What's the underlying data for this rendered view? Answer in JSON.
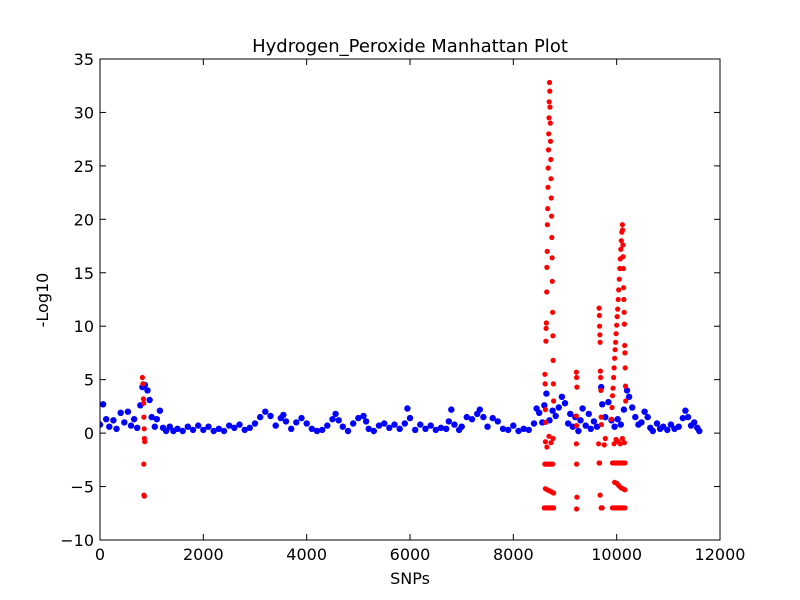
{
  "chart_data": {
    "type": "scatter",
    "title": "Hydrogen_Peroxide Manhattan Plot",
    "xlabel": "SNPs",
    "ylabel": "-Log10",
    "xlim": [
      0,
      12000
    ],
    "ylim": [
      -10,
      35
    ],
    "xticks": [
      0,
      2000,
      4000,
      6000,
      8000,
      10000,
      12000
    ],
    "yticks": [
      -10,
      -5,
      0,
      5,
      10,
      15,
      20,
      25,
      30,
      35
    ],
    "xtick_labels": [
      "0",
      "2000",
      "4000",
      "6000",
      "8000",
      "10000",
      "12000"
    ],
    "ytick_labels": [
      "−10",
      "−5",
      "0",
      "5",
      "10",
      "15",
      "20",
      "25",
      "30",
      "35"
    ],
    "grid": false,
    "series": [
      {
        "color": "#0000ff",
        "points": [
          [
            0,
            0.8
          ],
          [
            60,
            2.7
          ],
          [
            120,
            1.3
          ],
          [
            180,
            0.6
          ],
          [
            260,
            1.2
          ],
          [
            320,
            0.4
          ],
          [
            400,
            1.9
          ],
          [
            470,
            1.0
          ],
          [
            540,
            2.0
          ],
          [
            600,
            0.7
          ],
          [
            660,
            1.3
          ],
          [
            720,
            0.5
          ],
          [
            780,
            2.6
          ],
          [
            820,
            4.3
          ],
          [
            870,
            4.5
          ],
          [
            920,
            4.0
          ],
          [
            960,
            3.1
          ],
          [
            1000,
            1.5
          ],
          [
            1060,
            0.6
          ],
          [
            1100,
            1.3
          ],
          [
            1160,
            2.1
          ],
          [
            1220,
            0.5
          ],
          [
            1280,
            0.2
          ],
          [
            1350,
            0.6
          ],
          [
            1420,
            0.2
          ],
          [
            1500,
            0.4
          ],
          [
            1600,
            0.2
          ],
          [
            1700,
            0.6
          ],
          [
            1800,
            0.3
          ],
          [
            1900,
            0.7
          ],
          [
            2000,
            0.3
          ],
          [
            2100,
            0.6
          ],
          [
            2200,
            0.2
          ],
          [
            2300,
            0.4
          ],
          [
            2400,
            0.2
          ],
          [
            2500,
            0.7
          ],
          [
            2600,
            0.5
          ],
          [
            2700,
            0.8
          ],
          [
            2800,
            0.3
          ],
          [
            2900,
            0.5
          ],
          [
            3000,
            0.9
          ],
          [
            3100,
            1.5
          ],
          [
            3200,
            2.0
          ],
          [
            3300,
            1.6
          ],
          [
            3400,
            0.7
          ],
          [
            3500,
            1.4
          ],
          [
            3550,
            1.7
          ],
          [
            3600,
            1.1
          ],
          [
            3700,
            0.4
          ],
          [
            3800,
            1.0
          ],
          [
            3900,
            1.4
          ],
          [
            4000,
            0.9
          ],
          [
            4100,
            0.4
          ],
          [
            4200,
            0.2
          ],
          [
            4300,
            0.3
          ],
          [
            4400,
            0.7
          ],
          [
            4500,
            1.3
          ],
          [
            4560,
            1.8
          ],
          [
            4620,
            1.2
          ],
          [
            4700,
            0.6
          ],
          [
            4800,
            0.2
          ],
          [
            4900,
            0.9
          ],
          [
            5000,
            1.4
          ],
          [
            5100,
            1.6
          ],
          [
            5150,
            1.1
          ],
          [
            5200,
            0.4
          ],
          [
            5300,
            0.2
          ],
          [
            5400,
            0.7
          ],
          [
            5500,
            0.9
          ],
          [
            5600,
            0.5
          ],
          [
            5700,
            0.8
          ],
          [
            5800,
            0.4
          ],
          [
            5900,
            0.9
          ],
          [
            5950,
            2.3
          ],
          [
            6000,
            1.4
          ],
          [
            6100,
            0.3
          ],
          [
            6200,
            0.8
          ],
          [
            6300,
            0.4
          ],
          [
            6400,
            0.7
          ],
          [
            6500,
            0.3
          ],
          [
            6600,
            0.5
          ],
          [
            6700,
            0.4
          ],
          [
            6750,
            1.1
          ],
          [
            6800,
            2.2
          ],
          [
            6860,
            0.8
          ],
          [
            6950,
            0.3
          ],
          [
            7000,
            0.6
          ],
          [
            7100,
            1.5
          ],
          [
            7200,
            1.3
          ],
          [
            7300,
            1.8
          ],
          [
            7350,
            2.2
          ],
          [
            7420,
            1.5
          ],
          [
            7500,
            0.6
          ],
          [
            7600,
            1.4
          ],
          [
            7700,
            1.1
          ],
          [
            7800,
            0.4
          ],
          [
            7900,
            0.3
          ],
          [
            8000,
            0.7
          ],
          [
            8100,
            0.2
          ],
          [
            8200,
            0.4
          ],
          [
            8300,
            0.3
          ],
          [
            8400,
            0.9
          ],
          [
            8450,
            2.3
          ],
          [
            8500,
            1.9
          ],
          [
            8560,
            1.0
          ],
          [
            8600,
            2.6
          ],
          [
            8640,
            3.7
          ],
          [
            8700,
            1.2
          ],
          [
            8760,
            2.1
          ],
          [
            8820,
            1.6
          ],
          [
            8880,
            2.4
          ],
          [
            8940,
            3.4
          ],
          [
            9000,
            2.8
          ],
          [
            9060,
            0.9
          ],
          [
            9100,
            1.8
          ],
          [
            9150,
            0.6
          ],
          [
            9200,
            1.5
          ],
          [
            9260,
            0.2
          ],
          [
            9300,
            1.2
          ],
          [
            9340,
            2.3
          ],
          [
            9400,
            0.7
          ],
          [
            9460,
            1.8
          ],
          [
            9500,
            0.4
          ],
          [
            9560,
            1.1
          ],
          [
            9620,
            0.6
          ],
          [
            9700,
            4.3
          ],
          [
            9720,
            2.7
          ],
          [
            9780,
            1.5
          ],
          [
            9840,
            2.9
          ],
          [
            9900,
            1.2
          ],
          [
            9960,
            0.6
          ],
          [
            10020,
            1.3
          ],
          [
            10080,
            0.8
          ],
          [
            10140,
            2.2
          ],
          [
            10200,
            4.0
          ],
          [
            10240,
            3.4
          ],
          [
            10300,
            2.4
          ],
          [
            10360,
            1.5
          ],
          [
            10420,
            0.8
          ],
          [
            10480,
            1.0
          ],
          [
            10540,
            2.0
          ],
          [
            10600,
            1.5
          ],
          [
            10650,
            0.5
          ],
          [
            10700,
            0.2
          ],
          [
            10780,
            0.9
          ],
          [
            10840,
            0.4
          ],
          [
            10900,
            0.6
          ],
          [
            10980,
            0.3
          ],
          [
            11050,
            0.8
          ],
          [
            11120,
            0.4
          ],
          [
            11200,
            0.6
          ],
          [
            11280,
            1.4
          ],
          [
            11330,
            2.1
          ],
          [
            11380,
            1.5
          ],
          [
            11440,
            0.7
          ],
          [
            11500,
            1.0
          ],
          [
            11560,
            0.5
          ],
          [
            11600,
            0.2
          ]
        ]
      },
      {
        "color": "#ff0000",
        "points": [
          [
            820,
            5.2
          ],
          [
            830,
            4.6
          ],
          [
            840,
            3.2
          ],
          [
            845,
            2.8
          ],
          [
            850,
            1.5
          ],
          [
            855,
            0.4
          ],
          [
            860,
            -0.5
          ],
          [
            865,
            -0.8
          ],
          [
            848,
            -2.9
          ],
          [
            852,
            -5.8
          ],
          [
            858,
            -5.9
          ],
          [
            8610,
            5.5
          ],
          [
            8615,
            4.6
          ],
          [
            8620,
            2.2
          ],
          [
            8625,
            1.0
          ],
          [
            8630,
            8.6
          ],
          [
            8635,
            9.8
          ],
          [
            8640,
            10.3
          ],
          [
            8645,
            13.2
          ],
          [
            8650,
            15.5
          ],
          [
            8655,
            17.0
          ],
          [
            8660,
            19.5
          ],
          [
            8665,
            21.0
          ],
          [
            8670,
            23.0
          ],
          [
            8675,
            24.8
          ],
          [
            8680,
            26.5
          ],
          [
            8685,
            28.0
          ],
          [
            8690,
            29.5
          ],
          [
            8695,
            31.0
          ],
          [
            8700,
            32.8
          ],
          [
            8705,
            32.0
          ],
          [
            8710,
            30.5
          ],
          [
            8715,
            29.0
          ],
          [
            8720,
            27.3
          ],
          [
            8725,
            25.6
          ],
          [
            8730,
            23.8
          ],
          [
            8735,
            22.0
          ],
          [
            8740,
            20.3
          ],
          [
            8745,
            18.3
          ],
          [
            8750,
            16.4
          ],
          [
            8755,
            14.2
          ],
          [
            8760,
            11.3
          ],
          [
            8765,
            9.1
          ],
          [
            8770,
            6.8
          ],
          [
            8775,
            4.6
          ],
          [
            8780,
            3.0
          ],
          [
            8620,
            -0.8
          ],
          [
            8650,
            -1.3
          ],
          [
            8690,
            -0.3
          ],
          [
            8730,
            -0.9
          ],
          [
            8770,
            -0.5
          ],
          [
            8610,
            -2.9
          ],
          [
            8640,
            -2.9
          ],
          [
            8670,
            -2.9
          ],
          [
            8700,
            -2.9
          ],
          [
            8730,
            -2.9
          ],
          [
            8760,
            -2.9
          ],
          [
            8620,
            -5.2
          ],
          [
            8660,
            -5.3
          ],
          [
            8700,
            -5.4
          ],
          [
            8740,
            -5.5
          ],
          [
            8780,
            -5.6
          ],
          [
            8600,
            -7.0
          ],
          [
            8630,
            -7.0
          ],
          [
            8660,
            -7.0
          ],
          [
            8690,
            -7.0
          ],
          [
            8720,
            -7.0
          ],
          [
            8750,
            -7.0
          ],
          [
            8780,
            -7.0
          ],
          [
            9220,
            5.7
          ],
          [
            9225,
            5.2
          ],
          [
            9230,
            4.3
          ],
          [
            9220,
            1.6
          ],
          [
            9225,
            0.7
          ],
          [
            9220,
            -1.0
          ],
          [
            9225,
            -2.9
          ],
          [
            9230,
            -6.0
          ],
          [
            9225,
            -7.1
          ],
          [
            9660,
            11.7
          ],
          [
            9665,
            11.0
          ],
          [
            9670,
            10.0
          ],
          [
            9675,
            9.2
          ],
          [
            9680,
            8.5
          ],
          [
            9685,
            5.8
          ],
          [
            9690,
            5.2
          ],
          [
            9695,
            4.0
          ],
          [
            9700,
            1.5
          ],
          [
            9705,
            0.8
          ],
          [
            9650,
            -1.0
          ],
          [
            9660,
            -2.8
          ],
          [
            9670,
            -2.8
          ],
          [
            9680,
            -5.8
          ],
          [
            9700,
            -7.0
          ],
          [
            9720,
            -7.0
          ],
          [
            9760,
            -1.1
          ],
          [
            9780,
            -0.5
          ],
          [
            9900,
            1.3
          ],
          [
            9910,
            2.4
          ],
          [
            9920,
            3.5
          ],
          [
            9930,
            4.2
          ],
          [
            9940,
            5.2
          ],
          [
            9950,
            6.1
          ],
          [
            9960,
            7.0
          ],
          [
            9970,
            7.8
          ],
          [
            9980,
            8.5
          ],
          [
            9990,
            9.3
          ],
          [
            10000,
            10.1
          ],
          [
            10010,
            10.9
          ],
          [
            10020,
            11.6
          ],
          [
            10030,
            12.5
          ],
          [
            10040,
            13.4
          ],
          [
            10050,
            14.4
          ],
          [
            10060,
            15.4
          ],
          [
            10070,
            16.3
          ],
          [
            10080,
            17.2
          ],
          [
            10090,
            18.0
          ],
          [
            10100,
            18.8
          ],
          [
            10110,
            19.5
          ],
          [
            10115,
            19.0
          ],
          [
            10120,
            17.6
          ],
          [
            10125,
            16.5
          ],
          [
            10130,
            15.4
          ],
          [
            10135,
            13.6
          ],
          [
            10140,
            12.5
          ],
          [
            10145,
            11.3
          ],
          [
            10150,
            10.2
          ],
          [
            10155,
            8.2
          ],
          [
            10160,
            7.5
          ],
          [
            10165,
            6.1
          ],
          [
            10170,
            4.4
          ],
          [
            10175,
            3.0
          ],
          [
            9950,
            -1.0
          ],
          [
            9990,
            -0.6
          ],
          [
            10030,
            -0.8
          ],
          [
            10070,
            -1.0
          ],
          [
            10110,
            -0.5
          ],
          [
            10150,
            -0.9
          ],
          [
            9920,
            -2.8
          ],
          [
            9960,
            -2.8
          ],
          [
            10000,
            -2.8
          ],
          [
            10040,
            -2.8
          ],
          [
            10080,
            -2.8
          ],
          [
            10120,
            -2.8
          ],
          [
            10160,
            -2.8
          ],
          [
            9960,
            -4.6
          ],
          [
            10000,
            -4.7
          ],
          [
            10040,
            -4.9
          ],
          [
            10080,
            -5.1
          ],
          [
            10120,
            -5.2
          ],
          [
            10160,
            -5.3
          ],
          [
            9920,
            -7.0
          ],
          [
            9960,
            -7.0
          ],
          [
            10000,
            -7.0
          ],
          [
            10040,
            -7.0
          ],
          [
            10080,
            -7.0
          ],
          [
            10120,
            -7.0
          ],
          [
            10160,
            -7.0
          ]
        ]
      }
    ]
  }
}
